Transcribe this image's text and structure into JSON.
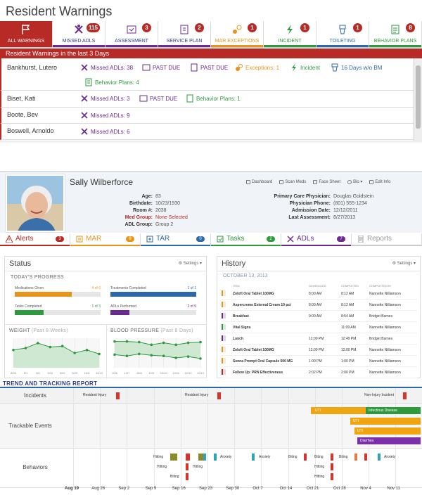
{
  "warnings": {
    "title": "Resident Warnings",
    "header": "Resident Warnings in the last 3 Days",
    "tabs": [
      {
        "label": "ALL WARNINGS",
        "icon": "flag-icon",
        "badge": "",
        "color": "#b82a26"
      },
      {
        "label": "MISSED ADLS",
        "icon": "missed-adl-icon",
        "badge": "115",
        "color": "#6b2a8f"
      },
      {
        "label": "ASSESSMENT",
        "icon": "assessment-icon",
        "badge": "3",
        "color": "#6b2a8f"
      },
      {
        "label": "SERVICE PLAN",
        "icon": "service-plan-icon",
        "badge": "2",
        "color": "#6b2a8f"
      },
      {
        "label": "MAR EXCEPTIONS",
        "icon": "mar-exceptions-icon",
        "badge": "1",
        "color": "#e8941a"
      },
      {
        "label": "INCIDENT",
        "icon": "incident-icon",
        "badge": "1",
        "color": "#2e9a3e"
      },
      {
        "label": "TOILETING",
        "icon": "toileting-icon",
        "badge": "1",
        "color": "#2b6aa8"
      },
      {
        "label": "BEHAVIOR PLANS",
        "icon": "behavior-plan-icon",
        "badge": "8",
        "color": "#2e9a3e"
      }
    ],
    "rows": [
      {
        "name": "Bankhurst, Lutero",
        "items": [
          "Missed ADLs: 38",
          "PAST DUE",
          "PAST DUE",
          "Exceptions: 1",
          "Incident",
          "16 Days w/o BM",
          "Behavior Plans: 4"
        ]
      },
      {
        "name": "Biset, Kati",
        "items": [
          "Missed ADLs: 3",
          "PAST DUE",
          "Behavior Plans: 1"
        ]
      },
      {
        "name": "Boote, Bev",
        "items": [
          "Missed ADLs: 9"
        ]
      },
      {
        "name": "Boswell, Arnoldo",
        "items": [
          "Missed ADLs: 6"
        ]
      }
    ]
  },
  "profile": {
    "name": "Sally Wilberforce",
    "toolbar": [
      "Dashboard",
      "Scan Meds",
      "Face Sheet",
      "Bio ▾",
      "Edit Info"
    ],
    "left_fields": [
      {
        "k": "Age:",
        "v": "83"
      },
      {
        "k": "Birthdate:",
        "v": "10/23/1930"
      },
      {
        "k": "Room #:",
        "v": "2038"
      },
      {
        "k": "Med Group:",
        "v": "None Selected"
      },
      {
        "k": "ADL Group:",
        "v": "Group 2"
      }
    ],
    "right_fields": [
      {
        "k": "Primary Care Physician:",
        "v": "Douglas Goldstein"
      },
      {
        "k": "Physician Phone:",
        "v": "(801) 555-1234"
      },
      {
        "k": "Admission Date:",
        "v": "12/12/2011"
      },
      {
        "k": "Last Assessment:",
        "v": "8/27/2013"
      }
    ],
    "tabs": [
      {
        "label": "Alerts",
        "badge": "3",
        "color": "#b82a26",
        "icon": "alert-icon"
      },
      {
        "label": "MAR",
        "badge": "9",
        "color": "#e8941a",
        "icon": "mar-icon"
      },
      {
        "label": "TAR",
        "badge": "0",
        "color": "#2b6aa8",
        "icon": "tar-icon"
      },
      {
        "label": "Tasks",
        "badge": "2",
        "color": "#2e9a3e",
        "icon": "tasks-icon"
      },
      {
        "label": "ADLs",
        "badge": "7",
        "color": "#6b2a8f",
        "icon": "adl-icon"
      },
      {
        "label": "Reports",
        "badge": "",
        "color": "#999999",
        "icon": "reports-icon"
      }
    ]
  },
  "status": {
    "title": "Status",
    "settings": "Settings ▾",
    "progress_title": "TODAY'S PROGRESS",
    "metrics": [
      {
        "label": "Medications Given",
        "value": "4 of 6",
        "fraction": 0.667,
        "color": "#e8941a"
      },
      {
        "label": "Treatments Completed",
        "value": "1 of 1",
        "fraction": 1.0,
        "color": "#2b6aa8"
      },
      {
        "label": "Tasks Completed",
        "value": "1 of 3",
        "fraction": 0.333,
        "color": "#2e9a3e"
      },
      {
        "label": "ADLs Performed",
        "value": "2 of 9",
        "fraction": 0.222,
        "color": "#6b2a8f"
      }
    ],
    "weight_title": "WEIGHT",
    "weight_sub": "(Past 8 Weeks)",
    "bp_title": "BLOOD PRESSURE",
    "bp_sub": "(Past 8 Days)"
  },
  "chart_data": [
    {
      "type": "area",
      "title": "WEIGHT (Past 8 Weeks)",
      "categories": [
        "8/25",
        "9/1",
        "9/8",
        "9/15",
        "9/22",
        "9/29",
        "10/6",
        "10/13"
      ],
      "values": [
        88,
        90,
        95,
        91,
        92,
        85,
        88,
        84
      ],
      "ylim": [
        70,
        100
      ],
      "color": "#2e9a3e"
    },
    {
      "type": "area",
      "title": "BLOOD PRESSURE (Past 8 Days)",
      "categories": [
        "10/6",
        "10/7",
        "10/8",
        "10/9",
        "10/10",
        "10/11",
        "10/12",
        "10/13"
      ],
      "series": [
        {
          "values": [
            140,
            140,
            138,
            130,
            136,
            130,
            136,
            138
          ]
        },
        {
          "values": [
            100,
            96,
            102,
            98,
            96,
            90,
            94,
            88
          ]
        }
      ],
      "ylim": [
        60,
        150
      ],
      "color": "#2e9a3e"
    }
  ],
  "history": {
    "title": "History",
    "settings": "Settings ▾",
    "date": "OCTOBER 13, 2013",
    "columns": [
      "ITEM",
      "SCHEDULED",
      "COMPLETED",
      "COMPLETED BY"
    ],
    "rows": [
      {
        "item": "Zoloft Oral Tablet 100MG",
        "sched": "8:00 AM",
        "done": "8:12 AM",
        "by": "Nannette Nilliamson",
        "color": "#e8941a"
      },
      {
        "item": "Aspercreme External Cream 10 pct",
        "sched": "8:00 AM",
        "done": "8:12 AM",
        "by": "Nannette Nilliamson",
        "color": "#e8941a"
      },
      {
        "item": "Breakfast",
        "sched": "9:00 AM",
        "done": "8:54 AM",
        "by": "Bridget Barnes",
        "color": "#6b2a8f"
      },
      {
        "item": "Vital Signs",
        "sched": "",
        "done": "11:09 AM",
        "by": "Nannette Nilliamson",
        "color": "#2e9a3e"
      },
      {
        "item": "Lunch",
        "sched": "12:00 PM",
        "done": "12:49 PM",
        "by": "Bridget Barnes",
        "color": "#6b2a8f"
      },
      {
        "item": "Zoloft Oral Tablet 100MG",
        "sched": "12:00 PM",
        "done": "12:00 PM",
        "by": "Nannette Nilliamson",
        "color": "#e8941a"
      },
      {
        "item": "Senna Prompt Oral Capsule 500 MG",
        "sched": "1:00 PM",
        "done": "1:00 PM",
        "by": "Nannette Nilliamson",
        "color": "#e8941a"
      },
      {
        "item": "Follow Up: PRN Effectiveness",
        "sched": "2:02 PM",
        "done": "2:00 PM",
        "by": "Nannette Nilliamson",
        "color": "#b82a26"
      }
    ]
  },
  "trend": {
    "title": "TREND AND TRACKING REPORT",
    "lanes": [
      "Incidents",
      "Trackable Events",
      "Behaviors"
    ],
    "incidents": [
      "Resident Injury",
      "Resident Injury",
      "Non-Injury Incident"
    ],
    "events": [
      "UTI",
      "Infectious Disease",
      "UTI",
      "UTI",
      "Diarrhea"
    ],
    "behaviors": [
      "Hitting",
      "Anxiety",
      "Hitting",
      "Hitting",
      "Biting",
      "Anxiety",
      "Biting",
      "Biting",
      "Biting",
      "Anxiety",
      "Hitting",
      "Hitting"
    ],
    "dates": [
      "Aug 19",
      "Aug 26",
      "Sep 2",
      "Sep 9",
      "Sep 16",
      "Sep 23",
      "Sep 30",
      "Oct 7",
      "Oct 14",
      "Oct 21",
      "Oct 28",
      "Nov 4",
      "Nov 11"
    ]
  }
}
